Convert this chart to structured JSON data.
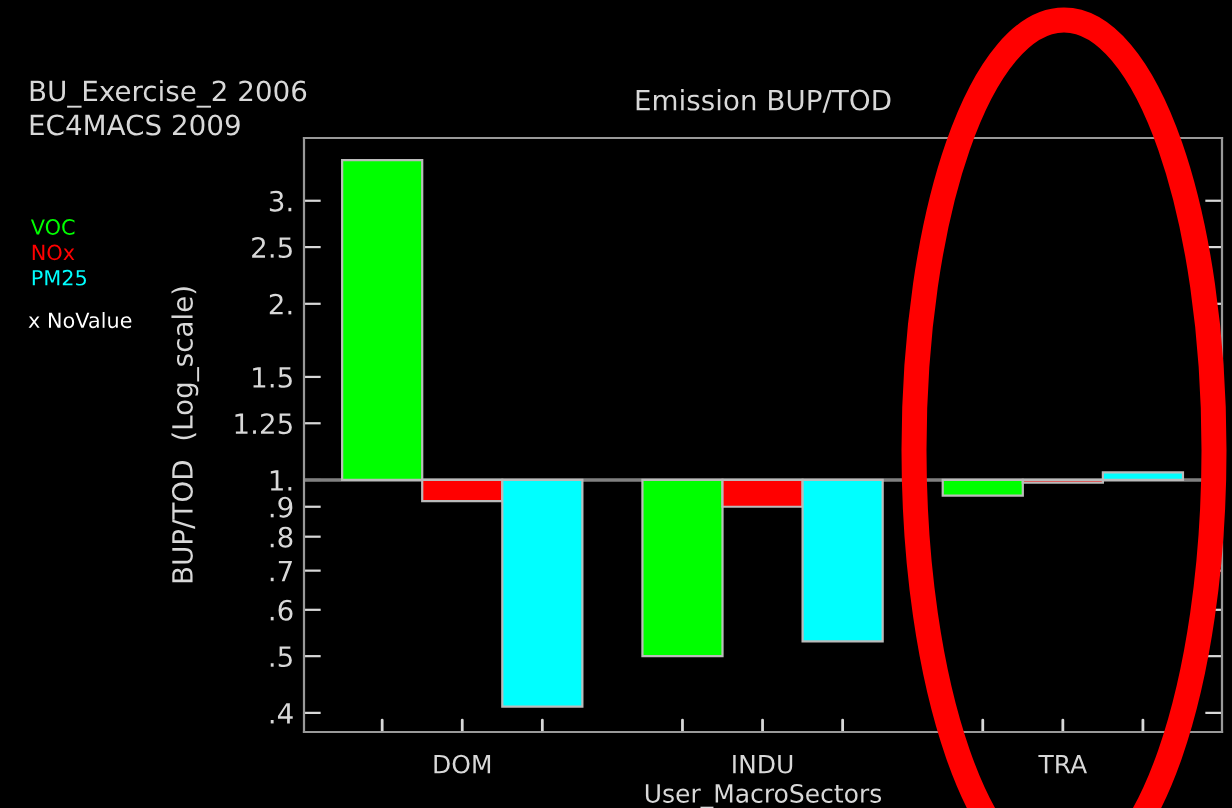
{
  "chart_data": {
    "type": "bar",
    "title": "Emission BUP/TOD",
    "subtitle": "BU_Exercise_2 2006\nEC4MACS 2009",
    "xlabel": "User_MacroSectors",
    "ylabel": "BUP/TOD  (Log_scale)",
    "categories": [
      "DOM",
      "INDU",
      "TRA"
    ],
    "series": [
      {
        "name": "VOC",
        "color": "#00ff00",
        "base": [
          1,
          1,
          1
        ],
        "values": [
          2.52,
          -0.5,
          -0.06
        ]
      },
      {
        "name": "NOx",
        "color": "#ff0000",
        "base": [
          1,
          1,
          1
        ],
        "values": [
          -0.08,
          -0.1,
          -0.01
        ]
      },
      {
        "name": "PM25",
        "color": "#00ffff",
        "base": [
          1,
          1,
          1
        ],
        "values": [
          -0.59,
          -0.47,
          0.03
        ]
      }
    ],
    "log": true,
    "ylim": [
      0.371,
      3.84
    ],
    "yticks": [
      {
        "value": 3,
        "label": "3."
      },
      2.5,
      {
        "value": 2,
        "label": "2."
      },
      1.5,
      1.25,
      {
        "value": 1,
        "label": "1."
      },
      {
        "value": 0.9,
        "label": ".9"
      },
      {
        "value": 0.8,
        "label": ".8"
      },
      {
        "value": 0.7,
        "label": ".7"
      },
      {
        "value": 0.6,
        "label": ".6"
      },
      {
        "value": 0.5,
        "label": ".5"
      },
      {
        "value": 0.4,
        "label": ".4"
      }
    ],
    "ref_lines": [
      {
        "axis": "y",
        "value": 1,
        "color": "#808080"
      }
    ],
    "annotations": [
      "x NoValue"
    ],
    "legend": "left",
    "grid": false
  }
}
